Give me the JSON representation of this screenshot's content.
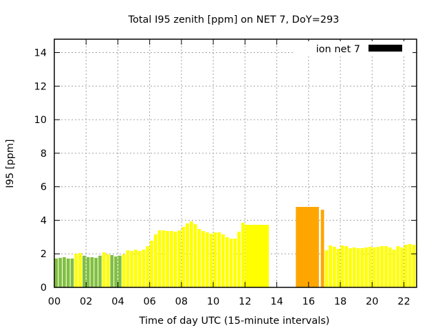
{
  "chart_data": {
    "type": "bar",
    "title": "Total I95 zenith [ppm] on NET 7, DoY=293",
    "xlabel": "Time of day UTC (15-minute intervals)",
    "ylabel": "I95 [ppm]",
    "xlim": [
      0,
      22.8
    ],
    "ylim": [
      0,
      14.8
    ],
    "xticks": [
      0,
      2,
      4,
      6,
      8,
      10,
      12,
      14,
      16,
      18,
      20,
      22
    ],
    "xtick_labels": [
      "00",
      "02",
      "04",
      "06",
      "08",
      "10",
      "12",
      "14",
      "16",
      "18",
      "20",
      "22"
    ],
    "yticks": [
      0,
      2,
      4,
      6,
      8,
      10,
      12,
      14
    ],
    "ytick_labels": [
      "0",
      "2",
      "4",
      "6",
      "8",
      "10",
      "12",
      "14"
    ],
    "grid": true,
    "legend": {
      "label": "ion net 7",
      "placement": "top-right",
      "color": "#000000"
    },
    "colors": {
      "g": "#80c040",
      "y": "#ffff00",
      "o": "#ffa500"
    },
    "slot_hours": 0.25,
    "values": [
      1.72,
      1.76,
      1.8,
      1.72,
      1.72,
      2.0,
      2.05,
      1.89,
      1.8,
      1.8,
      1.76,
      1.89,
      2.09,
      1.97,
      1.93,
      1.84,
      1.89,
      1.97,
      2.21,
      2.17,
      2.25,
      2.17,
      2.25,
      2.46,
      2.79,
      3.16,
      3.4,
      3.4,
      3.36,
      3.36,
      3.32,
      3.4,
      3.61,
      3.81,
      3.93,
      3.77,
      3.48,
      3.36,
      3.28,
      3.2,
      3.28,
      3.28,
      3.16,
      2.99,
      2.91,
      2.91,
      3.32,
      3.85,
      null,
      null,
      null,
      null,
      null,
      null,
      null,
      null,
      null,
      null,
      null,
      null,
      null,
      null,
      null,
      null,
      null,
      null,
      null,
      4.63,
      2.21,
      2.5,
      2.42,
      2.3,
      2.5,
      2.46,
      2.34,
      2.38,
      2.34,
      2.34,
      2.38,
      2.42,
      2.38,
      2.42,
      2.46,
      2.46,
      2.38,
      2.25,
      2.46,
      2.38,
      2.54,
      2.58,
      2.54,
      2.87
    ],
    "status": [
      "g",
      "g",
      "g",
      "g",
      "g",
      "y",
      "y",
      "g",
      "g",
      "g",
      "g",
      "g",
      "y",
      "y",
      "g",
      "g",
      "g",
      "y",
      "y",
      "y",
      "y",
      "y",
      "y",
      "y",
      "y",
      "y",
      "y",
      "y",
      "y",
      "y",
      "y",
      "y",
      "y",
      "y",
      "y",
      "y",
      "y",
      "y",
      "y",
      "y",
      "y",
      "y",
      "y",
      "y",
      "y",
      "y",
      "y",
      "y",
      "y",
      "y",
      "y",
      "y",
      "y",
      "y",
      "y",
      "y",
      "y",
      "y",
      "y",
      "y",
      "y",
      "y",
      "y",
      "y",
      "y",
      "y",
      "y",
      "o",
      "y",
      "y",
      "y",
      "y",
      "y",
      "y",
      "y",
      "y",
      "y",
      "y",
      "y",
      "y",
      "y",
      "y",
      "y",
      "y",
      "y",
      "y",
      "y",
      "y",
      "y",
      "y",
      "y",
      "y"
    ],
    "wide_bars": [
      {
        "start": 12.0,
        "end": 13.5,
        "value": 3.73,
        "status": "y"
      },
      {
        "start": 15.2,
        "end": 16.65,
        "value": 4.8,
        "status": "o"
      }
    ]
  }
}
